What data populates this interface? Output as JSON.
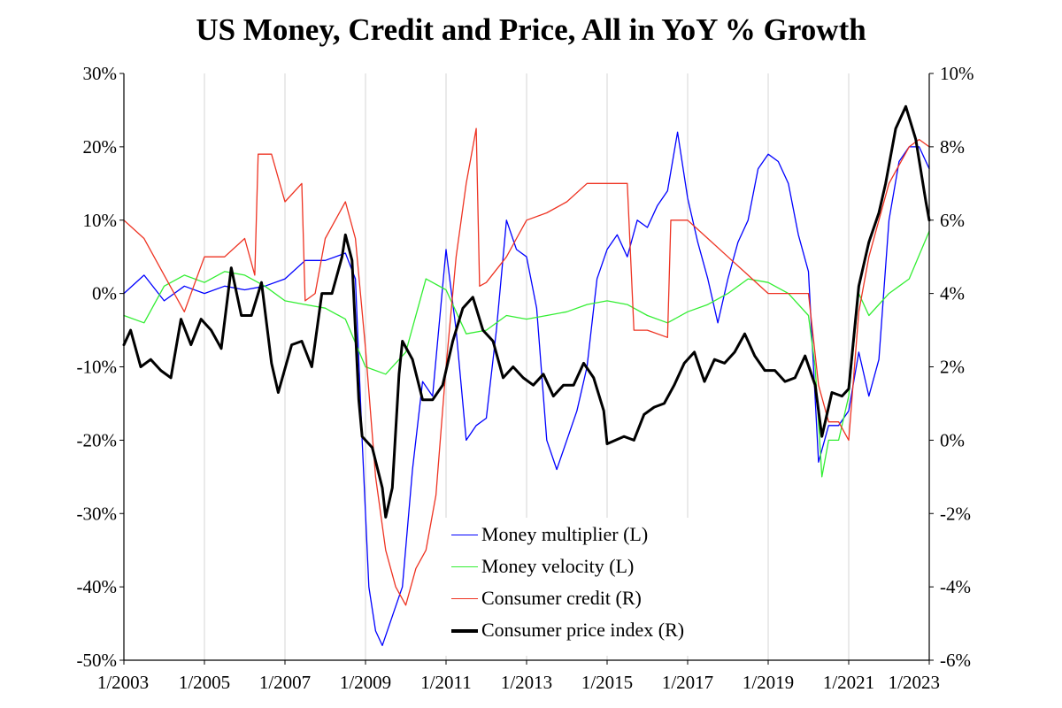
{
  "chart_data": {
    "type": "line",
    "title": "US Money, Credit and Price, All in YoY % Growth",
    "x_start": "2003-01",
    "x_end": "2023-01",
    "x_ticks": [
      "1/2003",
      "1/2005",
      "1/2007",
      "1/2009",
      "1/2011",
      "1/2013",
      "1/2015",
      "1/2017",
      "1/2019",
      "1/2021",
      "1/2023"
    ],
    "y_left": {
      "range": [
        -50,
        30
      ],
      "ticks": [
        30,
        20,
        10,
        0,
        -10,
        -20,
        -30,
        -40,
        -50
      ],
      "tick_labels": [
        "30%",
        "20%",
        "10%",
        "0%",
        "-10%",
        "-20%",
        "-30%",
        "-40%",
        "-50%"
      ]
    },
    "y_right": {
      "range": [
        -6,
        10
      ],
      "ticks": [
        10,
        8,
        6,
        4,
        2,
        0,
        -2,
        -4,
        -6
      ],
      "tick_labels": [
        "10%",
        "8%",
        "6%",
        "4%",
        "2%",
        "0%",
        "-2%",
        "-4%",
        "-6%"
      ]
    },
    "grid": "vertical",
    "legend_position": "bottom-center",
    "series": [
      {
        "name": "Money multiplier (L)",
        "axis": "left",
        "color": "#0000ff",
        "points": [
          [
            "2003-01",
            0.0
          ],
          [
            "2003-07",
            2.5
          ],
          [
            "2004-01",
            -1.0
          ],
          [
            "2004-07",
            1.0
          ],
          [
            "2005-01",
            0.0
          ],
          [
            "2005-07",
            1.0
          ],
          [
            "2006-01",
            0.5
          ],
          [
            "2006-07",
            1.0
          ],
          [
            "2007-01",
            2.0
          ],
          [
            "2007-07",
            4.5
          ],
          [
            "2008-01",
            4.5
          ],
          [
            "2008-07",
            5.5
          ],
          [
            "2008-10",
            2.0
          ],
          [
            "2008-12",
            -20.0
          ],
          [
            "2009-02",
            -40.0
          ],
          [
            "2009-04",
            -46.0
          ],
          [
            "2009-06",
            -48.0
          ],
          [
            "2009-09",
            -44.0
          ],
          [
            "2009-12",
            -40.0
          ],
          [
            "2010-03",
            -24.0
          ],
          [
            "2010-06",
            -12.0
          ],
          [
            "2010-09",
            -14.0
          ],
          [
            "2011-01",
            6.0
          ],
          [
            "2011-04",
            -5.0
          ],
          [
            "2011-07",
            -20.0
          ],
          [
            "2011-10",
            -18.0
          ],
          [
            "2012-01",
            -17.0
          ],
          [
            "2012-04",
            -5.0
          ],
          [
            "2012-07",
            10.0
          ],
          [
            "2012-10",
            6.0
          ],
          [
            "2013-01",
            5.0
          ],
          [
            "2013-04",
            -2.0
          ],
          [
            "2013-07",
            -20.0
          ],
          [
            "2013-10",
            -24.0
          ],
          [
            "2014-04",
            -16.0
          ],
          [
            "2014-07",
            -10.0
          ],
          [
            "2014-10",
            2.0
          ],
          [
            "2015-01",
            6.0
          ],
          [
            "2015-04",
            8.0
          ],
          [
            "2015-07",
            5.0
          ],
          [
            "2015-10",
            10.0
          ],
          [
            "2016-01",
            9.0
          ],
          [
            "2016-04",
            12.0
          ],
          [
            "2016-07",
            14.0
          ],
          [
            "2016-10",
            22.0
          ],
          [
            "2017-01",
            13.0
          ],
          [
            "2017-04",
            7.0
          ],
          [
            "2017-07",
            2.0
          ],
          [
            "2017-10",
            -4.0
          ],
          [
            "2018-01",
            2.0
          ],
          [
            "2018-04",
            7.0
          ],
          [
            "2018-07",
            10.0
          ],
          [
            "2018-10",
            17.0
          ],
          [
            "2019-01",
            19.0
          ],
          [
            "2019-04",
            18.0
          ],
          [
            "2019-07",
            15.0
          ],
          [
            "2019-10",
            8.0
          ],
          [
            "2020-01",
            3.0
          ],
          [
            "2020-04",
            -23.0
          ],
          [
            "2020-07",
            -18.0
          ],
          [
            "2020-10",
            -18.0
          ],
          [
            "2021-01",
            -16.0
          ],
          [
            "2021-04",
            -8.0
          ],
          [
            "2021-07",
            -14.0
          ],
          [
            "2021-10",
            -9.0
          ],
          [
            "2022-01",
            10.0
          ],
          [
            "2022-04",
            18.0
          ],
          [
            "2022-07",
            20.0
          ],
          [
            "2022-10",
            20.0
          ],
          [
            "2023-01",
            17.0
          ]
        ]
      },
      {
        "name": "Money velocity (L)",
        "axis": "left",
        "color": "#33ee33",
        "points": [
          [
            "2003-01",
            -3.0
          ],
          [
            "2003-07",
            -4.0
          ],
          [
            "2004-01",
            1.0
          ],
          [
            "2004-07",
            2.5
          ],
          [
            "2005-01",
            1.5
          ],
          [
            "2005-07",
            3.0
          ],
          [
            "2006-01",
            2.5
          ],
          [
            "2006-07",
            1.0
          ],
          [
            "2007-01",
            -1.0
          ],
          [
            "2007-07",
            -1.5
          ],
          [
            "2008-01",
            -2.0
          ],
          [
            "2008-07",
            -3.5
          ],
          [
            "2009-01",
            -10.0
          ],
          [
            "2009-07",
            -11.0
          ],
          [
            "2010-01",
            -8.0
          ],
          [
            "2010-07",
            2.0
          ],
          [
            "2011-01",
            0.5
          ],
          [
            "2011-07",
            -5.5
          ],
          [
            "2012-01",
            -5.0
          ],
          [
            "2012-07",
            -3.0
          ],
          [
            "2013-01",
            -3.5
          ],
          [
            "2013-07",
            -3.0
          ],
          [
            "2014-01",
            -2.5
          ],
          [
            "2014-07",
            -1.5
          ],
          [
            "2015-01",
            -1.0
          ],
          [
            "2015-07",
            -1.5
          ],
          [
            "2016-01",
            -3.0
          ],
          [
            "2016-07",
            -4.0
          ],
          [
            "2017-01",
            -2.5
          ],
          [
            "2017-07",
            -1.5
          ],
          [
            "2018-01",
            0.0
          ],
          [
            "2018-07",
            2.0
          ],
          [
            "2019-01",
            1.5
          ],
          [
            "2019-07",
            0.0
          ],
          [
            "2020-01",
            -3.0
          ],
          [
            "2020-03",
            -10.0
          ],
          [
            "2020-05",
            -25.0
          ],
          [
            "2020-07",
            -20.0
          ],
          [
            "2020-10",
            -20.0
          ],
          [
            "2021-01",
            -14.0
          ],
          [
            "2021-04",
            0.0
          ],
          [
            "2021-07",
            -3.0
          ],
          [
            "2022-01",
            0.0
          ],
          [
            "2022-07",
            2.0
          ],
          [
            "2023-01",
            8.5
          ]
        ]
      },
      {
        "name": "Consumer credit (R)",
        "axis": "right",
        "color": "#ee3322",
        "points": [
          [
            "2003-01",
            6.0
          ],
          [
            "2003-07",
            5.5
          ],
          [
            "2004-01",
            4.5
          ],
          [
            "2004-07",
            3.5
          ],
          [
            "2005-01",
            5.0
          ],
          [
            "2005-07",
            5.0
          ],
          [
            "2006-01",
            5.5
          ],
          [
            "2006-04",
            4.5
          ],
          [
            "2006-05",
            7.8
          ],
          [
            "2006-09",
            7.8
          ],
          [
            "2007-01",
            6.5
          ],
          [
            "2007-06",
            7.0
          ],
          [
            "2007-07",
            3.8
          ],
          [
            "2007-10",
            4.0
          ],
          [
            "2008-01",
            5.5
          ],
          [
            "2008-07",
            6.5
          ],
          [
            "2008-10",
            5.5
          ],
          [
            "2009-01",
            2.5
          ],
          [
            "2009-04",
            -1.0
          ],
          [
            "2009-07",
            -3.0
          ],
          [
            "2009-10",
            -4.0
          ],
          [
            "2010-01",
            -4.5
          ],
          [
            "2010-04",
            -3.5
          ],
          [
            "2010-07",
            -3.0
          ],
          [
            "2010-10",
            -1.5
          ],
          [
            "2011-01",
            2.0
          ],
          [
            "2011-04",
            5.0
          ],
          [
            "2011-07",
            7.0
          ],
          [
            "2011-10",
            8.5
          ],
          [
            "2011-11",
            4.2
          ],
          [
            "2012-01",
            4.3
          ],
          [
            "2012-07",
            5.0
          ],
          [
            "2012-10",
            5.5
          ],
          [
            "2013-01",
            6.0
          ],
          [
            "2013-07",
            6.2
          ],
          [
            "2014-01",
            6.5
          ],
          [
            "2014-07",
            7.0
          ],
          [
            "2015-01",
            7.0
          ],
          [
            "2015-07",
            7.0
          ],
          [
            "2015-09",
            3.0
          ],
          [
            "2016-01",
            3.0
          ],
          [
            "2016-07",
            2.8
          ],
          [
            "2016-08",
            6.0
          ],
          [
            "2017-01",
            6.0
          ],
          [
            "2017-07",
            5.5
          ],
          [
            "2018-01",
            5.0
          ],
          [
            "2018-07",
            4.5
          ],
          [
            "2019-01",
            4.0
          ],
          [
            "2019-07",
            4.0
          ],
          [
            "2020-01",
            4.0
          ],
          [
            "2020-04",
            1.5
          ],
          [
            "2020-07",
            0.5
          ],
          [
            "2020-10",
            0.5
          ],
          [
            "2021-01",
            0.0
          ],
          [
            "2021-04",
            3.5
          ],
          [
            "2021-07",
            5.0
          ],
          [
            "2021-10",
            6.0
          ],
          [
            "2022-01",
            7.0
          ],
          [
            "2022-07",
            8.0
          ],
          [
            "2022-10",
            8.2
          ],
          [
            "2023-01",
            8.0
          ]
        ]
      },
      {
        "name": "Consumer price index (R)",
        "axis": "right",
        "color": "#000000",
        "width": 3,
        "points": [
          [
            "2003-01",
            2.6
          ],
          [
            "2003-03",
            3.0
          ],
          [
            "2003-06",
            2.0
          ],
          [
            "2003-09",
            2.2
          ],
          [
            "2003-12",
            1.9
          ],
          [
            "2004-03",
            1.7
          ],
          [
            "2004-06",
            3.3
          ],
          [
            "2004-09",
            2.6
          ],
          [
            "2004-12",
            3.3
          ],
          [
            "2005-03",
            3.0
          ],
          [
            "2005-06",
            2.5
          ],
          [
            "2005-09",
            4.7
          ],
          [
            "2005-12",
            3.4
          ],
          [
            "2006-03",
            3.4
          ],
          [
            "2006-06",
            4.3
          ],
          [
            "2006-09",
            2.1
          ],
          [
            "2006-11",
            1.3
          ],
          [
            "2007-03",
            2.6
          ],
          [
            "2007-06",
            2.7
          ],
          [
            "2007-09",
            2.0
          ],
          [
            "2007-12",
            4.0
          ],
          [
            "2008-03",
            4.0
          ],
          [
            "2008-06",
            5.0
          ],
          [
            "2008-07",
            5.6
          ],
          [
            "2008-09",
            4.9
          ],
          [
            "2008-11",
            1.1
          ],
          [
            "2008-12",
            0.1
          ],
          [
            "2009-03",
            -0.2
          ],
          [
            "2009-06",
            -1.3
          ],
          [
            "2009-07",
            -2.1
          ],
          [
            "2009-09",
            -1.3
          ],
          [
            "2009-11",
            1.8
          ],
          [
            "2009-12",
            2.7
          ],
          [
            "2010-03",
            2.2
          ],
          [
            "2010-06",
            1.1
          ],
          [
            "2010-09",
            1.1
          ],
          [
            "2010-12",
            1.5
          ],
          [
            "2011-03",
            2.7
          ],
          [
            "2011-06",
            3.6
          ],
          [
            "2011-09",
            3.9
          ],
          [
            "2011-12",
            3.0
          ],
          [
            "2012-03",
            2.7
          ],
          [
            "2012-06",
            1.7
          ],
          [
            "2012-09",
            2.0
          ],
          [
            "2012-12",
            1.7
          ],
          [
            "2013-03",
            1.5
          ],
          [
            "2013-06",
            1.8
          ],
          [
            "2013-09",
            1.2
          ],
          [
            "2013-12",
            1.5
          ],
          [
            "2014-03",
            1.5
          ],
          [
            "2014-06",
            2.1
          ],
          [
            "2014-09",
            1.7
          ],
          [
            "2014-12",
            0.8
          ],
          [
            "2015-01",
            -0.1
          ],
          [
            "2015-06",
            0.1
          ],
          [
            "2015-09",
            0.0
          ],
          [
            "2015-12",
            0.7
          ],
          [
            "2016-03",
            0.9
          ],
          [
            "2016-06",
            1.0
          ],
          [
            "2016-09",
            1.5
          ],
          [
            "2016-12",
            2.1
          ],
          [
            "2017-03",
            2.4
          ],
          [
            "2017-06",
            1.6
          ],
          [
            "2017-09",
            2.2
          ],
          [
            "2017-12",
            2.1
          ],
          [
            "2018-03",
            2.4
          ],
          [
            "2018-06",
            2.9
          ],
          [
            "2018-09",
            2.3
          ],
          [
            "2018-12",
            1.9
          ],
          [
            "2019-03",
            1.9
          ],
          [
            "2019-06",
            1.6
          ],
          [
            "2019-09",
            1.7
          ],
          [
            "2019-12",
            2.3
          ],
          [
            "2020-03",
            1.5
          ],
          [
            "2020-05",
            0.1
          ],
          [
            "2020-08",
            1.3
          ],
          [
            "2020-11",
            1.2
          ],
          [
            "2021-01",
            1.4
          ],
          [
            "2021-04",
            4.2
          ],
          [
            "2021-07",
            5.4
          ],
          [
            "2021-10",
            6.2
          ],
          [
            "2021-12",
            7.0
          ],
          [
            "2022-03",
            8.5
          ],
          [
            "2022-06",
            9.1
          ],
          [
            "2022-09",
            8.2
          ],
          [
            "2022-12",
            6.5
          ],
          [
            "2023-01",
            6.0
          ]
        ]
      }
    ]
  }
}
